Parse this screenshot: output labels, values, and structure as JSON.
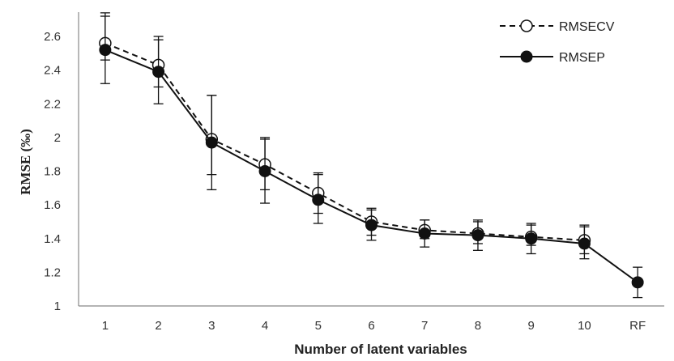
{
  "chart_data": {
    "type": "line",
    "xlabel": "Number of latent variables",
    "ylabel": "RMSE (‰)",
    "categories": [
      "1",
      "2",
      "3",
      "4",
      "5",
      "6",
      "7",
      "8",
      "9",
      "10",
      "RF"
    ],
    "ylim": [
      1,
      2.7
    ],
    "yticks": [
      "1",
      "1.2",
      "1.4",
      "1.6",
      "1.8",
      "2",
      "2.2",
      "2.4",
      "2.6"
    ],
    "grid": false,
    "legend_position": "top-right",
    "series": [
      {
        "name": "RMSECV",
        "style": "dashed",
        "marker": "open-circle",
        "values": [
          2.56,
          2.43,
          1.99,
          1.84,
          1.67,
          1.5,
          1.45,
          1.43,
          1.41,
          1.39,
          null
        ],
        "error_low": [
          2.46,
          2.3,
          1.78,
          1.69,
          1.55,
          1.42,
          1.4,
          1.37,
          1.36,
          1.31,
          null
        ],
        "error_high": [
          2.72,
          2.58,
          2.25,
          2.0,
          1.79,
          1.58,
          1.51,
          1.51,
          1.49,
          1.48,
          null
        ]
      },
      {
        "name": "RMSEP",
        "style": "solid",
        "marker": "filled-circle",
        "values": [
          2.52,
          2.39,
          1.97,
          1.8,
          1.63,
          1.48,
          1.43,
          1.42,
          1.4,
          1.37,
          1.14
        ],
        "error_low": [
          2.32,
          2.2,
          1.69,
          1.61,
          1.49,
          1.39,
          1.35,
          1.33,
          1.31,
          1.28,
          1.05
        ],
        "error_high": [
          2.74,
          2.6,
          2.25,
          1.99,
          1.78,
          1.57,
          1.51,
          1.5,
          1.48,
          1.47,
          1.23
        ]
      }
    ],
    "colors": {
      "line": "#111111",
      "axis": "#888888",
      "text": "#333333"
    }
  }
}
